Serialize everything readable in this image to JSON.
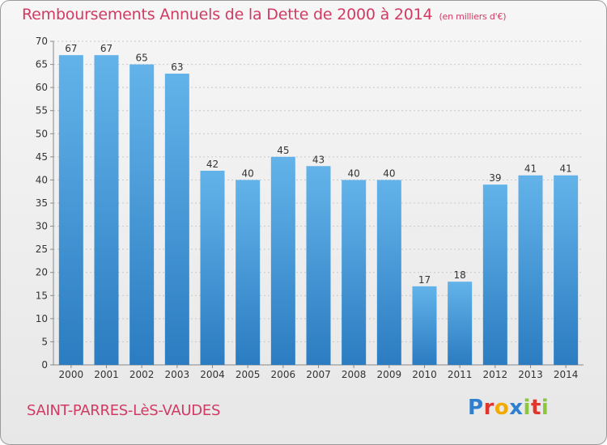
{
  "header": {
    "title": "Remboursements Annuels de la Dette de 2000 à 2014",
    "unit": "(en milliers d'€)"
  },
  "footer": {
    "commune": "SAINT-PARRES-LèS-VAUDES",
    "brand": "Proxiti",
    "brand_colors": [
      "#2f7fd0",
      "#e2342a",
      "#f2a900",
      "#2f7fd0",
      "#8cc63f",
      "#e2342a",
      "#8cc63f"
    ]
  },
  "colors": {
    "bar_top": "#63b3ea",
    "bar_bottom": "#2b7cc1",
    "grid": "#c8c8c8",
    "axis_text": "#333333",
    "accent": "#d23a64"
  },
  "chart_data": {
    "type": "bar",
    "title": "Remboursements Annuels de la Dette de 2000 à 2014",
    "categories": [
      "2000",
      "2001",
      "2002",
      "2003",
      "2004",
      "2005",
      "2006",
      "2007",
      "2008",
      "2009",
      "2010",
      "2011",
      "2012",
      "2013",
      "2014"
    ],
    "values": [
      67,
      67,
      65,
      63,
      42,
      40,
      45,
      43,
      40,
      40,
      17,
      18,
      39,
      41,
      41
    ],
    "ylim": [
      0,
      70
    ],
    "yticks": [
      0,
      5,
      10,
      15,
      20,
      25,
      30,
      35,
      40,
      45,
      50,
      55,
      60,
      65,
      70
    ],
    "grid": true,
    "xlabel": "",
    "ylabel": ""
  }
}
